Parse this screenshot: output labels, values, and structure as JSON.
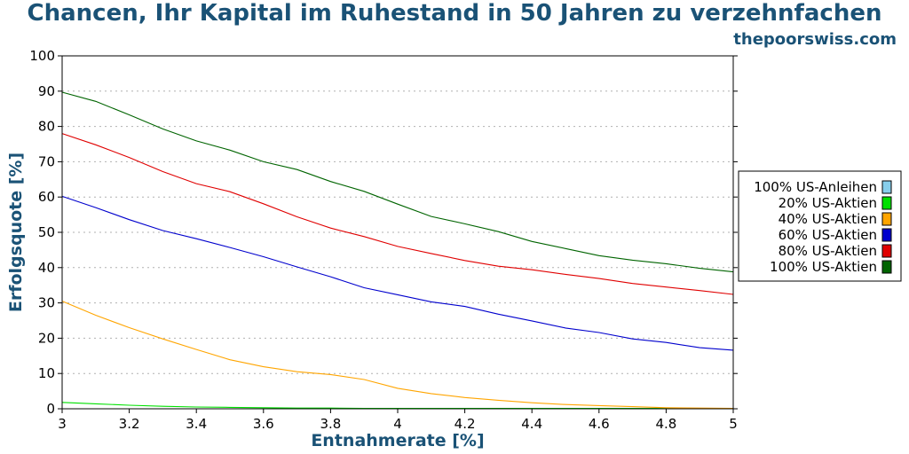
{
  "header": {
    "title": "Chancen, Ihr Kapital im Ruhestand in 50 Jahren zu verzehnfachen",
    "source": "thepoorswiss.com"
  },
  "colors": {
    "title": "#1a5276",
    "grid": "#b0b0b0"
  },
  "chart_data": {
    "type": "line",
    "title": "Chancen, Ihr Kapital im Ruhestand in 50 Jahren zu verzehnfachen",
    "xlabel": "Entnahmerate [%]",
    "ylabel": "Erfolgsquote [%]",
    "xlim": [
      3,
      5
    ],
    "ylim": [
      0,
      100
    ],
    "grid": "horizontal dotted",
    "legend_position": "right",
    "x_ticks": [
      "3",
      "3.2",
      "3.4",
      "3.6",
      "3.8",
      "4",
      "4.2",
      "4.4",
      "4.6",
      "4.8",
      "5"
    ],
    "y_ticks": [
      "0",
      "10",
      "20",
      "30",
      "40",
      "50",
      "60",
      "70",
      "80",
      "90",
      "100"
    ],
    "x": [
      3.0,
      3.1,
      3.2,
      3.3,
      3.4,
      3.5,
      3.6,
      3.7,
      3.8,
      3.9,
      4.0,
      4.1,
      4.2,
      4.3,
      4.4,
      4.5,
      4.6,
      4.7,
      4.8,
      4.9,
      5.0
    ],
    "series": [
      {
        "name": "100% US-Anleihen",
        "color": "#87ceeb",
        "values": [
          0,
          0,
          0,
          0,
          0,
          0,
          0,
          0,
          0,
          0,
          0,
          0,
          0,
          0,
          0,
          0,
          0,
          0,
          0,
          0,
          0
        ]
      },
      {
        "name": "20% US-Aktien",
        "color": "#00e000",
        "values": [
          1.8,
          1.4,
          1.0,
          0.7,
          0.5,
          0.4,
          0.3,
          0.2,
          0.2,
          0.1,
          0.1,
          0.1,
          0.1,
          0.1,
          0.1,
          0.1,
          0.1,
          0.1,
          0.1,
          0.1,
          0.0
        ]
      },
      {
        "name": "40% US-Aktien",
        "color": "#ffa500",
        "values": [
          30.5,
          26.5,
          23,
          19.8,
          16.8,
          13.9,
          11.9,
          10.5,
          9.7,
          8.3,
          5.8,
          4.3,
          3.2,
          2.4,
          1.7,
          1.2,
          0.9,
          0.6,
          0.3,
          0.2,
          0.1
        ]
      },
      {
        "name": "60% US-Aktien",
        "color": "#0000cd",
        "values": [
          60.2,
          57,
          53.6,
          50.5,
          48.2,
          45.7,
          43.1,
          40.2,
          37.4,
          34.3,
          32.3,
          30.3,
          29,
          26.8,
          24.9,
          22.9,
          21.6,
          19.8,
          18.8,
          17.3,
          16.6
        ]
      },
      {
        "name": "80% US-Aktien",
        "color": "#e00000",
        "values": [
          78,
          74.8,
          71.2,
          67.2,
          63.8,
          61.5,
          58.1,
          54.4,
          51.2,
          48.8,
          46,
          44,
          42,
          40.4,
          39.4,
          38.1,
          36.9,
          35.5,
          34.5,
          33.5,
          32.4
        ]
      },
      {
        "name": "100% US-Aktien",
        "color": "#006400",
        "values": [
          89.7,
          87.1,
          83.3,
          79.3,
          75.9,
          73.3,
          70,
          67.8,
          64.4,
          61.6,
          58,
          54.5,
          52.4,
          50.2,
          47.4,
          45.4,
          43.4,
          42.1,
          41.1,
          39.8,
          38.8
        ]
      }
    ]
  }
}
